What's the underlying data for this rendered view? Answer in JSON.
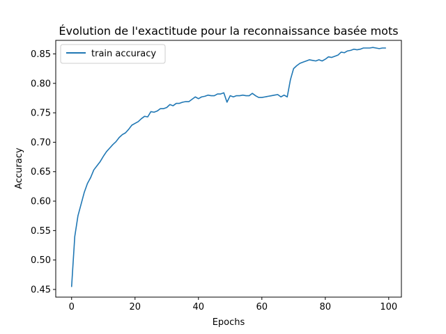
{
  "chart_data": {
    "type": "line",
    "title": "Évolution de l'exactitude pour la reconnaissance basée mots",
    "xlabel": "Epochs",
    "ylabel": "Accuracy",
    "xlim": [
      -5,
      104
    ],
    "ylim": [
      0.437,
      0.873
    ],
    "xticks": [
      0,
      20,
      40,
      60,
      80,
      100
    ],
    "xtick_labels": [
      "0",
      "20",
      "40",
      "60",
      "80",
      "100"
    ],
    "yticks": [
      0.45,
      0.5,
      0.55,
      0.6,
      0.65,
      0.7,
      0.75,
      0.8,
      0.85
    ],
    "ytick_labels": [
      "0.45",
      "0.50",
      "0.55",
      "0.60",
      "0.65",
      "0.70",
      "0.75",
      "0.80",
      "0.85"
    ],
    "grid": false,
    "legend_position": "top-left",
    "series": [
      {
        "name": "train accuracy",
        "color": "#1f77b4",
        "x": [
          0,
          1,
          2,
          3,
          4,
          5,
          6,
          7,
          8,
          9,
          10,
          11,
          12,
          13,
          14,
          15,
          16,
          17,
          18,
          19,
          20,
          21,
          22,
          23,
          24,
          25,
          26,
          27,
          28,
          29,
          30,
          31,
          32,
          33,
          34,
          35,
          36,
          37,
          38,
          39,
          40,
          41,
          42,
          43,
          44,
          45,
          46,
          47,
          48,
          49,
          50,
          51,
          52,
          53,
          54,
          55,
          56,
          57,
          58,
          59,
          60,
          61,
          62,
          63,
          64,
          65,
          66,
          67,
          68,
          69,
          70,
          71,
          72,
          73,
          74,
          75,
          76,
          77,
          78,
          79,
          80,
          81,
          82,
          83,
          84,
          85,
          86,
          87,
          88,
          89,
          90,
          91,
          92,
          93,
          94,
          95,
          96,
          97,
          98,
          99
        ],
        "y": [
          0.455,
          0.54,
          0.575,
          0.595,
          0.615,
          0.63,
          0.64,
          0.653,
          0.66,
          0.667,
          0.676,
          0.684,
          0.69,
          0.696,
          0.701,
          0.708,
          0.713,
          0.716,
          0.722,
          0.729,
          0.732,
          0.735,
          0.74,
          0.744,
          0.743,
          0.752,
          0.751,
          0.753,
          0.757,
          0.757,
          0.759,
          0.764,
          0.762,
          0.766,
          0.766,
          0.768,
          0.769,
          0.769,
          0.773,
          0.777,
          0.774,
          0.777,
          0.778,
          0.78,
          0.779,
          0.779,
          0.782,
          0.782,
          0.784,
          0.768,
          0.779,
          0.777,
          0.779,
          0.779,
          0.78,
          0.779,
          0.779,
          0.783,
          0.779,
          0.776,
          0.776,
          0.777,
          0.778,
          0.779,
          0.78,
          0.781,
          0.777,
          0.78,
          0.777,
          0.806,
          0.825,
          0.83,
          0.834,
          0.836,
          0.838,
          0.84,
          0.839,
          0.838,
          0.84,
          0.838,
          0.841,
          0.845,
          0.844,
          0.846,
          0.848,
          0.853,
          0.852,
          0.855,
          0.856,
          0.858,
          0.857,
          0.858,
          0.86,
          0.86,
          0.86,
          0.861,
          0.86,
          0.859,
          0.86,
          0.86
        ]
      }
    ]
  }
}
